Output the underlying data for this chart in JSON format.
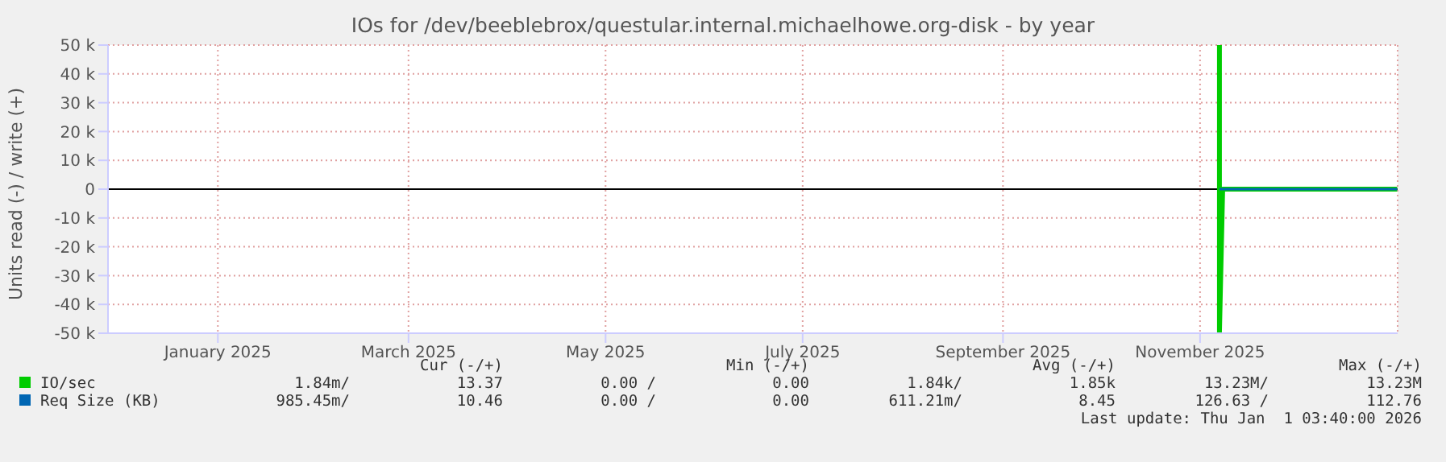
{
  "chart_data": {
    "type": "line",
    "title": "IOs for /dev/beeblebrox/questular.internal.michaelhowe.org-disk - by year",
    "ylabel": "Units read (-) / write (+)",
    "x": [
      "2025-11-07",
      "2025-11-08",
      "2025-12-01",
      "2026-01-01"
    ],
    "series": [
      {
        "name": "IO/sec",
        "color": "#00cc00",
        "x": [
          "2025-11-07",
          "2025-11-07",
          "2025-11-08",
          "2026-01-01"
        ],
        "values": [
          50000,
          -50000,
          0,
          0
        ]
      },
      {
        "name": "Req Size (KB)",
        "color": "#0066b3",
        "values": [
          0,
          0,
          0,
          0
        ]
      }
    ],
    "xlim": [
      "2024-11-28",
      "2026-01-01T03:40"
    ],
    "xticks": [
      {
        "value": "2025-01-01",
        "label": "January 2025"
      },
      {
        "value": "2025-03-01",
        "label": "March 2025"
      },
      {
        "value": "2025-05-01",
        "label": "May 2025"
      },
      {
        "value": "2025-07-01",
        "label": "July 2025"
      },
      {
        "value": "2025-09-01",
        "label": "September 2025"
      },
      {
        "value": "2025-11-01",
        "label": "November 2025"
      }
    ],
    "ylim": [
      -50000,
      50000
    ],
    "yticks": [
      {
        "value": -50000,
        "label": "-50 k"
      },
      {
        "value": -40000,
        "label": "-40 k"
      },
      {
        "value": -30000,
        "label": "-30 k"
      },
      {
        "value": -20000,
        "label": "-20 k"
      },
      {
        "value": -10000,
        "label": "-10 k"
      },
      0,
      {
        "value": 10000,
        "label": "10 k"
      },
      {
        "value": 20000,
        "label": "20 k"
      },
      {
        "value": 30000,
        "label": "30 k"
      },
      {
        "value": 40000,
        "label": "40 k"
      },
      {
        "value": 50000,
        "label": "50 k"
      }
    ],
    "ref_lines": [
      {
        "axis": "y",
        "value": 0,
        "color": "#000000"
      }
    ],
    "grid": true,
    "legend": "bottom",
    "marker": "none",
    "line_style": "solid",
    "annotations": [
      "Cur (-/+)",
      "Min (-/+)",
      "Avg (-/+)",
      "Max (-/+)",
      "1.84m/",
      "13.37",
      "0.00 /",
      "0.00",
      "1.84k/",
      "1.85k",
      "13.23M/",
      "13.23M",
      "985.45m/",
      "10.46",
      "0.00 /",
      "0.00",
      "611.21m/",
      "8.45",
      "126.63 /",
      "112.76",
      "Last update: Thu Jan  1 03:40:00 2026"
    ]
  }
}
